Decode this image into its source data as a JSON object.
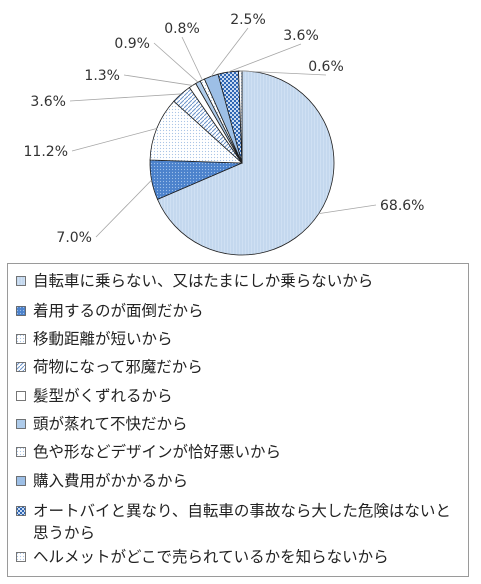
{
  "chart_data": {
    "type": "pie",
    "title": "",
    "slices": [
      {
        "label": "自転車に乗らない、又はたまにしか乗らないから",
        "value": 68.6,
        "value_label": "68.6%",
        "color": "#cfe0f3",
        "pattern": "vlines"
      },
      {
        "label": "着用するのが面倒だから",
        "value": 7.0,
        "value_label": "7.0%",
        "color": "#5b8fd4",
        "pattern": "dots"
      },
      {
        "label": "移動距離が短いから",
        "value": 11.2,
        "value_label": "11.2%",
        "color": "#f4f8fd",
        "pattern": "fine-dots"
      },
      {
        "label": "荷物になって邪魔だから",
        "value": 3.6,
        "value_label": "3.6%",
        "color": "#ffffff",
        "pattern": "diagonal"
      },
      {
        "label": "髪型がくずれるから",
        "value": 1.3,
        "value_label": "1.3%",
        "color": "#ffffff",
        "pattern": "none"
      },
      {
        "label": "頭が蒸れて不快だから",
        "value": 0.9,
        "value_label": "0.9%",
        "color": "#aecbea",
        "pattern": "none"
      },
      {
        "label": "色や形などデザインが恰好悪いから",
        "value": 0.8,
        "value_label": "0.8%",
        "color": "#e6eef8",
        "pattern": "fine-dots"
      },
      {
        "label": "購入費用がかかるから",
        "value": 2.5,
        "value_label": "2.5%",
        "color": "#9dbfe6",
        "pattern": "none"
      },
      {
        "label": "オートバイと異なり、自転車の事故なら大した危険はないと思うから",
        "value": 3.6,
        "value_label": "3.6%",
        "color": "#3f75c0",
        "pattern": "checker"
      },
      {
        "label": "ヘルメットがどこで売られているかを知らないから",
        "value": 0.6,
        "value_label": "0.6%",
        "color": "#f0f5fb",
        "pattern": "fine-dots"
      }
    ],
    "legend_position": "bottom"
  }
}
